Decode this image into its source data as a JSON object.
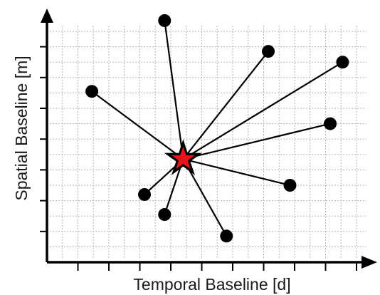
{
  "chart_data": {
    "type": "scatter",
    "title": "",
    "xlabel": "Temporal Baseline [d]",
    "ylabel": "Spatial Baseline [m]",
    "xlim": [
      0,
      10
    ],
    "ylim": [
      0,
      7.5
    ],
    "grid": true,
    "major_tick_spacing": 1,
    "minor_grid_spacing": 0.5,
    "reference": {
      "x": 4.4,
      "y": 3.35
    },
    "points": [
      {
        "x": 3.8,
        "y": 7.85
      },
      {
        "x": 7.15,
        "y": 6.85
      },
      {
        "x": 9.55,
        "y": 6.5
      },
      {
        "x": 1.45,
        "y": 5.55
      },
      {
        "x": 9.15,
        "y": 4.5
      },
      {
        "x": 7.85,
        "y": 2.5
      },
      {
        "x": 3.15,
        "y": 2.2
      },
      {
        "x": 3.8,
        "y": 1.55
      },
      {
        "x": 5.8,
        "y": 0.85
      }
    ],
    "colors": {
      "axis": "#000000",
      "grid": "#b5b5b5",
      "point": "#000000",
      "line": "#000000",
      "star_fill": "#e8141c",
      "star_outline": "#000000"
    }
  }
}
